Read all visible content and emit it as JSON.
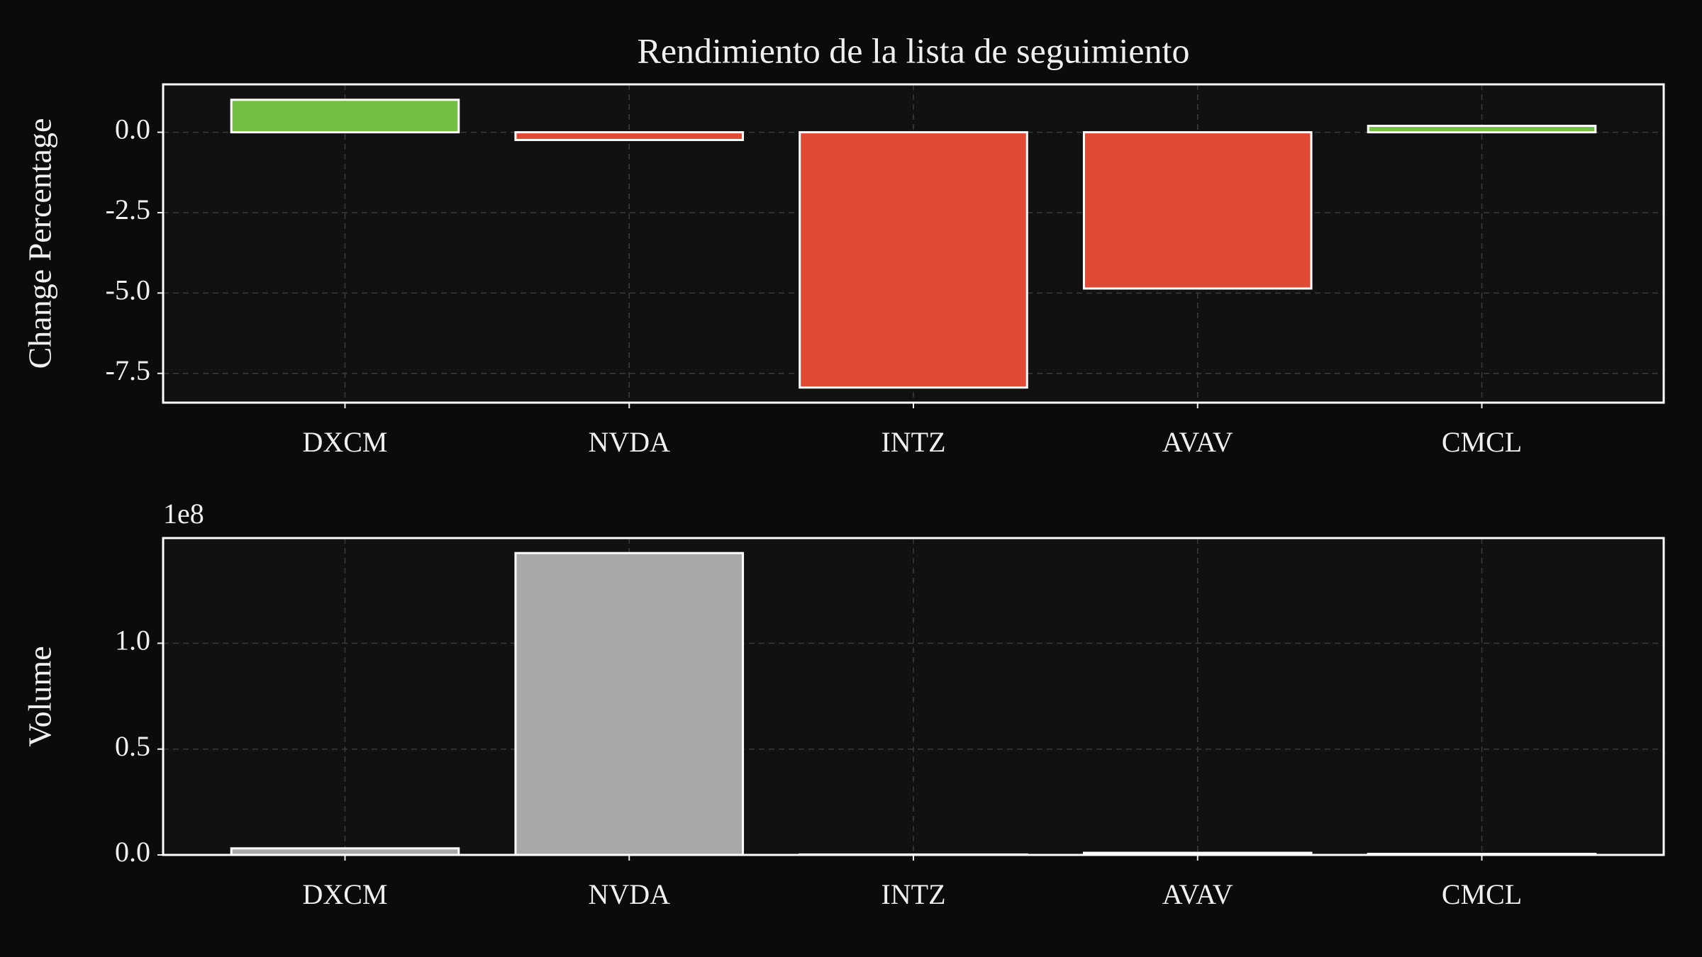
{
  "chart_data": [
    {
      "type": "bar",
      "title": "Rendimiento de la lista de seguimiento",
      "ylabel": "Change Percentage",
      "categories": [
        "DXCM",
        "NVDA",
        "INTZ",
        "AVAV",
        "CMCL"
      ],
      "values": [
        1.01,
        -0.24,
        -7.94,
        -4.86,
        0.2
      ],
      "colors": [
        "#72bf44",
        "#e04b35",
        "#e04b35",
        "#e04b35",
        "#72bf44"
      ],
      "ylim": [
        -8.41,
        1.49
      ],
      "yticks": [
        {
          "value": 0,
          "label": "0.0"
        },
        -2.5,
        {
          "value": -5,
          "label": "-5.0"
        },
        -7.5
      ],
      "grid": true
    },
    {
      "type": "bar",
      "ylabel": "Volume",
      "offset_label": "1e8",
      "categories": [
        "DXCM",
        "NVDA",
        "INTZ",
        "AVAV",
        "CMCL"
      ],
      "values": [
        3100000,
        142600000,
        200000,
        1000000,
        500000
      ],
      "color": "#a8a8a8",
      "ylim": [
        0,
        149700000
      ],
      "yticks": [
        {
          "value": 0,
          "label": "0.0"
        },
        {
          "value": 50000000,
          "label": "0.5"
        },
        {
          "value": 100000000,
          "label": "1.0"
        }
      ],
      "grid": true
    }
  ]
}
